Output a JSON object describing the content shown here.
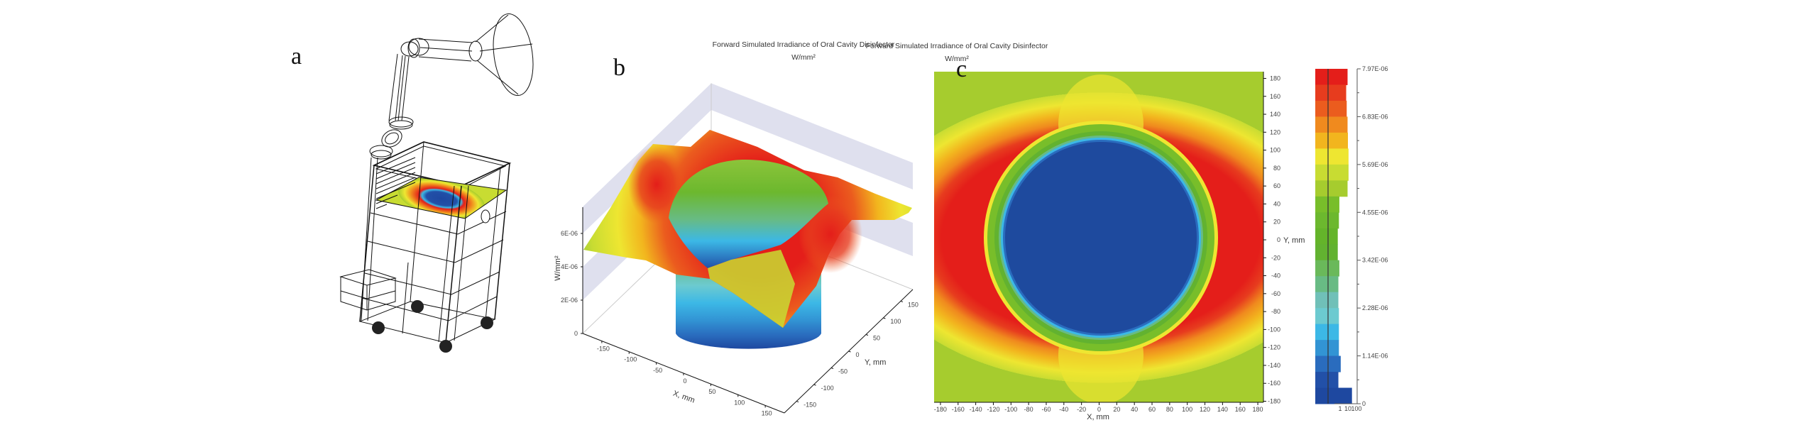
{
  "panels": {
    "a": {
      "label": "a"
    },
    "b": {
      "label": "b"
    },
    "c": {
      "label": "c"
    }
  },
  "chart_data": [
    {
      "type": "surface3d",
      "title": "Forward Simulated Irradiance of Oral Cavity Disinfector",
      "subtitle": "W/mm²",
      "zlabel": "W/mm²",
      "xlabel": "X, mm",
      "ylabel": "Y, mm",
      "zticks": [
        0,
        2e-06,
        4e-06,
        6e-06
      ],
      "ztick_labels": [
        "0",
        "2E-06",
        "4E-06",
        "6E-06"
      ],
      "xticks": [
        -150,
        -100,
        -50,
        0,
        50,
        100,
        150
      ],
      "xtick_labels": [
        "-150",
        "-100",
        "-50",
        "0",
        "50",
        "100",
        "150"
      ],
      "yticks": [
        -150,
        -100,
        -50,
        0,
        50,
        100,
        150
      ],
      "ytick_labels": [
        "-150",
        "-100",
        "-50",
        "0",
        "50",
        "100",
        "150"
      ],
      "description_of_shape": "annular ring of high irradiance around a circular low-irradiance well"
    },
    {
      "type": "heatmap",
      "title": "Forward Simulated Irradiance of Oral Cavity Disinfector",
      "subtitle": "W/mm²",
      "xlabel": "X, mm",
      "ylabel": "Y, mm",
      "xticks": [
        -180,
        -160,
        -140,
        -120,
        -100,
        -80,
        -60,
        -40,
        -20,
        0,
        20,
        40,
        60,
        80,
        100,
        120,
        140,
        160,
        180
      ],
      "xtick_labels": [
        "-180",
        "-160",
        "-140",
        "-120",
        "-100",
        "-80",
        "-60",
        "-40",
        "-20",
        "0",
        "20",
        "40",
        "60",
        "80",
        "100",
        "120",
        "140",
        "160",
        "180"
      ],
      "yticks": [
        180,
        160,
        140,
        120,
        100,
        80,
        60,
        40,
        20,
        0,
        -20,
        -40,
        -60,
        -80,
        -100,
        -120,
        -140,
        -160,
        -180
      ],
      "ytick_labels": [
        "180",
        "160",
        "140",
        "120",
        "100",
        "80",
        "60",
        "40",
        "20",
        "0",
        "-20",
        "-40",
        "-60",
        "-80",
        "-100",
        "-120",
        "-140",
        "-160",
        "-180"
      ],
      "colorbar": {
        "range": [
          0,
          7.97e-06
        ],
        "ticks": [
          7.97e-06,
          6.83e-06,
          5.69e-06,
          4.55e-06,
          3.42e-06,
          2.28e-06,
          1.14e-06,
          0
        ],
        "tick_labels": [
          "7.97E-06",
          "6.83E-06",
          "5.69E-06",
          "4.55E-06",
          "3.42E-06",
          "2.28E-06",
          "1.14E-06",
          "0"
        ],
        "colors_top_to_bottom": [
          "#e41e1a",
          "#e73c1e",
          "#eb5c1e",
          "#f08a1e",
          "#f2b51e",
          "#eee631",
          "#c8dc32",
          "#a6cc2e",
          "#78be2a",
          "#6cb82e",
          "#64b42a",
          "#62b230",
          "#6ab95a",
          "#68bb84",
          "#70c0b8",
          "#6ccad0",
          "#3cb8e6",
          "#3294d4",
          "#2a6cbe",
          "#2250a8",
          "#1e48a0"
        ],
        "histogram_scale": "log",
        "histogram_tick_labels": [
          "1",
          "10",
          "100"
        ],
        "histogram_counts_top_to_bottom": [
          9,
          6,
          7,
          9,
          10,
          12,
          12,
          9,
          0.8,
          0.7,
          0.5,
          0.5,
          0.8,
          0.6,
          0.6,
          0.7,
          0.7,
          0.7,
          1.2,
          0.6,
          33
        ]
      }
    }
  ]
}
